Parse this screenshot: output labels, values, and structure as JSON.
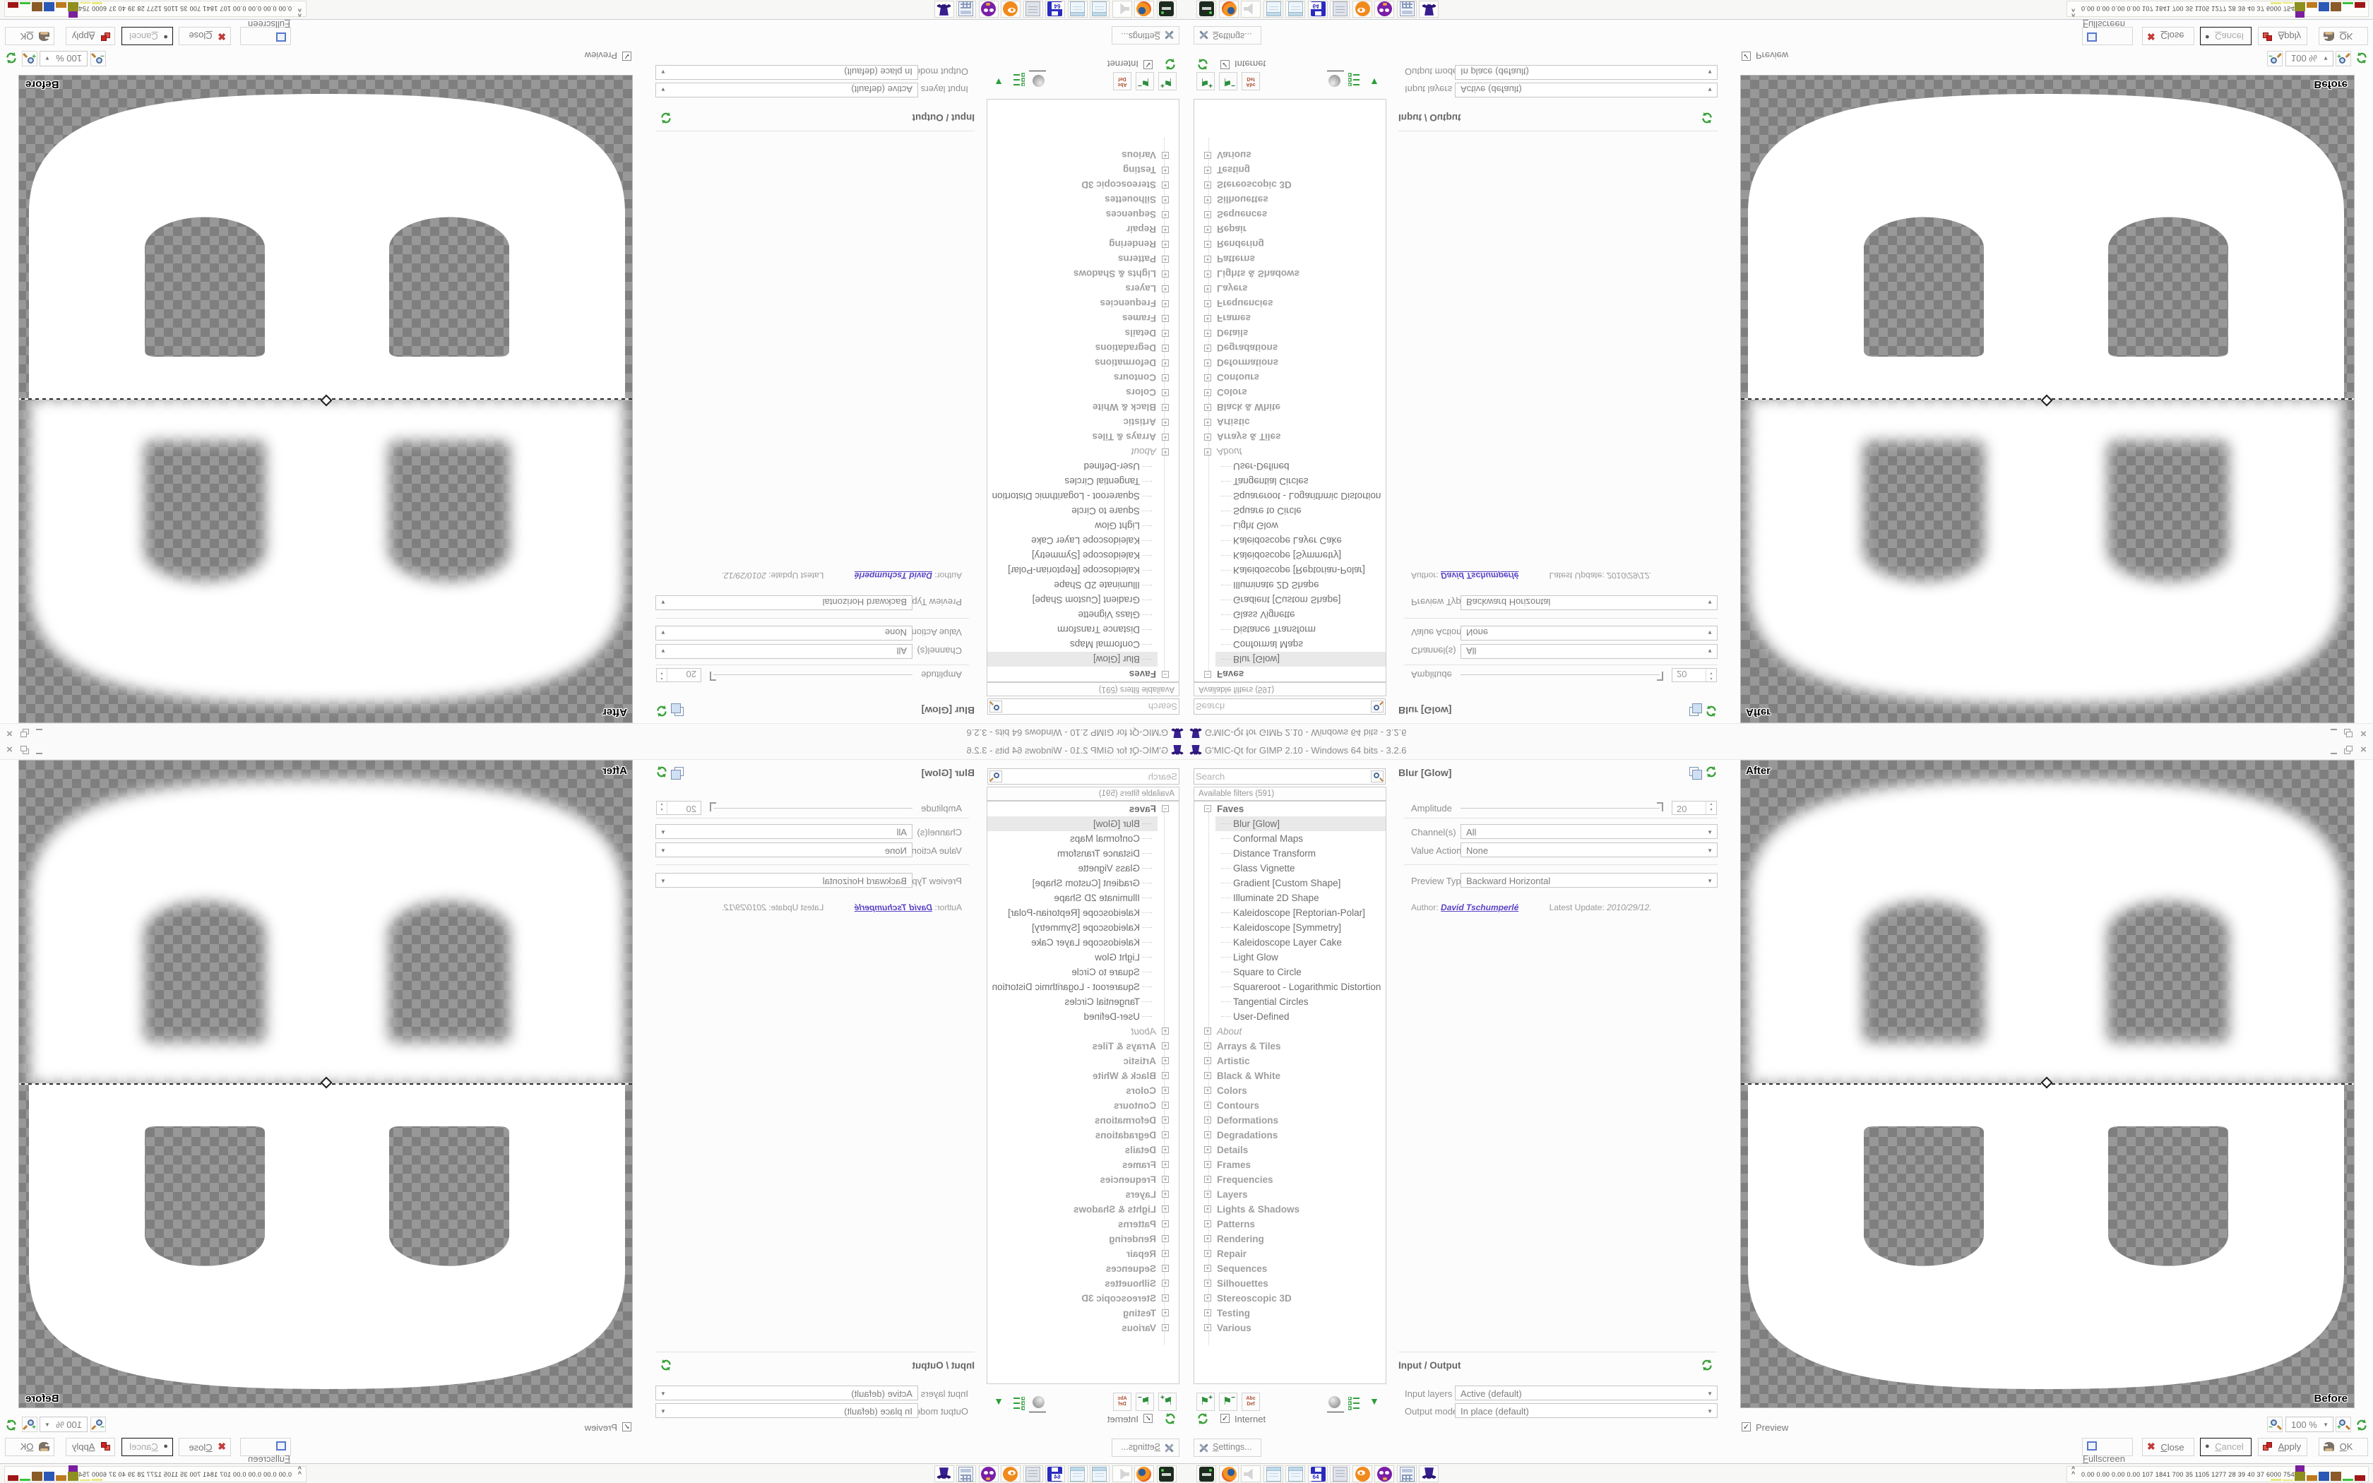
{
  "icons": {
    "check": "✓",
    "dropdown_arrow": "▼",
    "spin_up": "▲",
    "spin_down": "▼",
    "flag": "⚑",
    "plus": "+",
    "minus": "−",
    "window_close": "×",
    "close_x": "✖",
    "circle": "●",
    "chevron": "^",
    "expander_open": "−",
    "expander_closed": "+"
  },
  "titlebar": {
    "title": "G'MIC-Qt for GIMP 2.10 - Windows 64 bits - 3.2.6"
  },
  "filter_panel": {
    "search_placeholder": "Search",
    "header": "Available filters (591)",
    "faves_label": "Faves",
    "fave_items": [
      "Blur [Glow]",
      "Conformal Maps",
      "Distance Transform",
      "Glass Vignette",
      "Gradient [Custom Shape]",
      "Illuminate 2D Shape",
      "Kaleidoscope [Reptorian-Polar]",
      "Kaleidoscope [Symmetry]",
      "Kaleidoscope Layer Cake",
      "Light Glow",
      "Square to Circle",
      "Squareroot - Logarithmic Distortion",
      "Tangential Circles",
      "User-Defined"
    ],
    "selected_item": "Blur [Glow]",
    "about_label": "About",
    "categories": [
      "Arrays & Tiles",
      "Artistic",
      "Black & White",
      "Colors",
      "Contours",
      "Deformations",
      "Degradations",
      "Details",
      "Frames",
      "Frequencies",
      "Layers",
      "Lights & Shadows",
      "Patterns",
      "Rendering",
      "Repair",
      "Sequences",
      "Silhouettes",
      "Stereoscopic 3D",
      "Testing",
      "Various"
    ],
    "rename_top": "Abc",
    "rename_bottom": "Def",
    "internet_label": "Internet",
    "settings_label": "Settings..."
  },
  "params": {
    "filter_title": "Blur [Glow]",
    "amplitude_label": "Amplitude",
    "amplitude_value": "20",
    "channels_label": "Channel(s)",
    "channels_value": "All",
    "value_action_label": "Value Action",
    "value_action_value": "None",
    "preview_type_label": "Preview Type",
    "preview_type_value": "Backward Horizontal",
    "author_label": "Author:",
    "author_name": "David Tschumperlé",
    "update_label": "Latest Update:",
    "update_value": "2010/29/12."
  },
  "io": {
    "header": "Input / Output",
    "input_layers_label": "Input layers",
    "input_layers_value": "Active (default)",
    "output_mode_label": "Output mode",
    "output_mode_value": "In place (default)"
  },
  "preview": {
    "after_label": "After",
    "before_label": "Before",
    "zoom_value": "100 %",
    "preview_label": "Preview"
  },
  "actions": {
    "fullscreen": "Fullscreen",
    "close": "Close",
    "cancel": "Cancel",
    "apply": "Apply",
    "ok": "OK"
  },
  "taskbar": {
    "apps": [
      {
        "name": "drive-icon"
      },
      {
        "name": "firefox-icon"
      },
      {
        "name": "volume-muted-icon"
      },
      {
        "name": "notepad-icon"
      },
      {
        "name": "notepad2-icon"
      },
      {
        "name": "floppy64-icon",
        "label": "64"
      },
      {
        "name": "documents-icon"
      },
      {
        "name": "blender-icon"
      },
      {
        "name": "purple-app-icon"
      },
      {
        "name": "calculator-icon"
      },
      {
        "name": "gmic-hat-icon"
      }
    ],
    "tray_text": "0.00 0.00 0.00 0.00   107   1841 700   35   1105 1277   28   39   40   37   6000 7548",
    "tray_bars": [
      {
        "c": "#e9e97e",
        "h": 3
      },
      {
        "c": "#e9e97e",
        "h": 2
      },
      {
        "c": "#8f8f1f",
        "h": 13,
        "cap": "#7a1f9e",
        "caph": 9
      },
      {
        "c": "#bd7a1e",
        "h": 8
      },
      {
        "c": "#2b57b5",
        "h": 13
      },
      {
        "c": "#8a5a28",
        "h": 13
      },
      {
        "c": "#3bbf3b",
        "h": 3
      },
      {
        "c": "#a01616",
        "h": 8
      }
    ]
  },
  "colors": {
    "accent_green": "#3aa13a",
    "link_purple": "#5b43c5",
    "checker_dark": "#7f7f7f",
    "checker_light": "#989898"
  }
}
